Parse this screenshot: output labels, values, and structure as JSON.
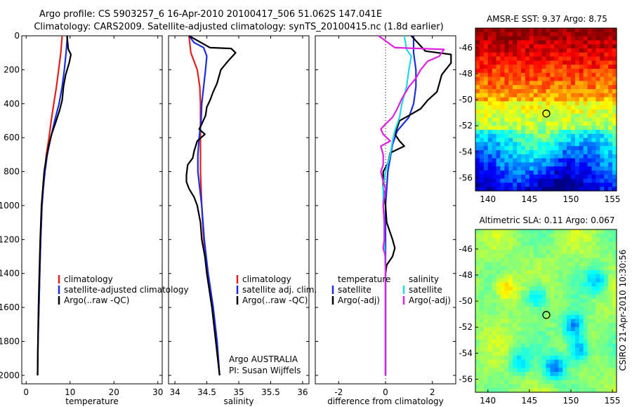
{
  "header": {
    "line1": "Argo profile: CS 5903257_6 16-Apr-2010 20100417_506 51.062S 147.041E",
    "line2": "Climatology: CARS2009. Satellite-adjusted climatology: synTS_20100415.nc (1.8d earlier)"
  },
  "colors": {
    "climatology": "#e0201e",
    "satellite": "#1a2ee0",
    "argo": "#000000",
    "satellite_salinity": "#22d8e8",
    "argo_salinity": "#e020e0"
  },
  "chart_data": [
    {
      "type": "line",
      "name": "temperature-panel",
      "xlabel": "temperature",
      "xlim": [
        -1,
        31
      ],
      "ylim": [
        0,
        2050
      ],
      "y_reversed": true,
      "xticks": [
        "0",
        "10",
        "20",
        "30"
      ],
      "yticks": [
        "0",
        "200",
        "400",
        "600",
        "800",
        "1000",
        "1200",
        "1400",
        "1600",
        "1800",
        "2000"
      ],
      "legend": [
        "climatology",
        "satellite-adjusted climatology",
        "Argo(..raw -QC)"
      ],
      "series": [
        {
          "name": "climatology",
          "color": "climatology",
          "points": [
            [
              8.2,
              0
            ],
            [
              7.9,
              100
            ],
            [
              7.4,
              200
            ],
            [
              6.9,
              300
            ],
            [
              6.3,
              400
            ],
            [
              5.7,
              500
            ],
            [
              5.2,
              600
            ],
            [
              4.6,
              700
            ],
            [
              4.2,
              800
            ],
            [
              3.9,
              900
            ],
            [
              3.6,
              1000
            ],
            [
              3.3,
              1200
            ],
            [
              3.1,
              1400
            ],
            [
              2.9,
              1600
            ],
            [
              2.7,
              1800
            ],
            [
              2.6,
              2000
            ]
          ]
        },
        {
          "name": "satellite-adjusted climatology",
          "color": "satellite",
          "points": [
            [
              9.4,
              0
            ],
            [
              9.1,
              100
            ],
            [
              8.7,
              200
            ],
            [
              8.2,
              300
            ],
            [
              7.5,
              400
            ],
            [
              6.5,
              500
            ],
            [
              5.6,
              600
            ],
            [
              4.8,
              700
            ],
            [
              4.3,
              800
            ],
            [
              3.9,
              900
            ],
            [
              3.6,
              1000
            ],
            [
              3.3,
              1200
            ],
            [
              3.1,
              1400
            ],
            [
              2.9,
              1600
            ],
            [
              2.7,
              1800
            ],
            [
              2.6,
              2000
            ]
          ]
        },
        {
          "name": "Argo(..raw -QC)",
          "color": "argo",
          "points": [
            [
              9.3,
              0
            ],
            [
              9.6,
              80
            ],
            [
              10.2,
              110
            ],
            [
              9.8,
              160
            ],
            [
              9.0,
              230
            ],
            [
              8.5,
              300
            ],
            [
              8.2,
              380
            ],
            [
              7.6,
              440
            ],
            [
              6.6,
              520
            ],
            [
              5.8,
              580
            ],
            [
              5.2,
              640
            ],
            [
              4.6,
              720
            ],
            [
              4.1,
              800
            ],
            [
              3.8,
              900
            ],
            [
              3.5,
              1000
            ],
            [
              3.2,
              1200
            ],
            [
              3.0,
              1400
            ],
            [
              2.8,
              1600
            ],
            [
              2.7,
              1800
            ],
            [
              2.6,
              2000
            ]
          ]
        }
      ]
    },
    {
      "type": "line",
      "name": "salinity-panel",
      "xlabel": "salinity",
      "xlim": [
        33.9,
        36.1
      ],
      "ylim": [
        0,
        2050
      ],
      "y_reversed": true,
      "xticks": [
        "34",
        "34.5",
        "35",
        "35.5",
        "36"
      ],
      "legend": [
        "climatology",
        "satellite adj. clim.",
        "Argo(..raw -QC)"
      ],
      "annotation": [
        "Argo AUSTRALIA",
        "PI: Susan Wijffels"
      ],
      "series": [
        {
          "name": "climatology",
          "color": "climatology",
          "points": [
            [
              34.22,
              0
            ],
            [
              34.25,
              100
            ],
            [
              34.35,
              200
            ],
            [
              34.39,
              300
            ],
            [
              34.4,
              400
            ],
            [
              34.4,
              500
            ],
            [
              34.4,
              600
            ],
            [
              34.4,
              700
            ],
            [
              34.4,
              800
            ],
            [
              34.41,
              900
            ],
            [
              34.42,
              1000
            ],
            [
              34.45,
              1200
            ],
            [
              34.52,
              1400
            ],
            [
              34.6,
              1600
            ],
            [
              34.66,
              1800
            ],
            [
              34.7,
              2000
            ]
          ]
        },
        {
          "name": "satellite adj. clim.",
          "color": "satellite",
          "points": [
            [
              34.22,
              0
            ],
            [
              34.3,
              40
            ],
            [
              34.45,
              70
            ],
            [
              34.5,
              120
            ],
            [
              34.48,
              200
            ],
            [
              34.45,
              300
            ],
            [
              34.42,
              400
            ],
            [
              34.41,
              500
            ],
            [
              34.38,
              600
            ],
            [
              34.36,
              700
            ],
            [
              34.36,
              800
            ],
            [
              34.39,
              900
            ],
            [
              34.42,
              1000
            ],
            [
              34.46,
              1200
            ],
            [
              34.52,
              1400
            ],
            [
              34.6,
              1600
            ],
            [
              34.66,
              1800
            ],
            [
              34.7,
              2000
            ]
          ]
        },
        {
          "name": "Argo(..raw -QC)",
          "color": "argo",
          "points": [
            [
              34.22,
              0
            ],
            [
              34.55,
              70
            ],
            [
              34.88,
              75
            ],
            [
              34.95,
              100
            ],
            [
              34.83,
              150
            ],
            [
              34.72,
              200
            ],
            [
              34.66,
              280
            ],
            [
              34.6,
              330
            ],
            [
              34.55,
              380
            ],
            [
              34.5,
              420
            ],
            [
              34.48,
              470
            ],
            [
              34.42,
              520
            ],
            [
              34.38,
              550
            ],
            [
              34.47,
              580
            ],
            [
              34.35,
              620
            ],
            [
              34.3,
              680
            ],
            [
              34.28,
              720
            ],
            [
              34.2,
              760
            ],
            [
              34.18,
              820
            ],
            [
              34.18,
              860
            ],
            [
              34.22,
              900
            ],
            [
              34.3,
              950
            ],
            [
              34.35,
              1000
            ],
            [
              34.4,
              1100
            ],
            [
              34.42,
              1200
            ],
            [
              34.47,
              1300
            ],
            [
              34.5,
              1400
            ],
            [
              34.58,
              1600
            ],
            [
              34.64,
              1800
            ],
            [
              34.7,
              2000
            ]
          ]
        }
      ]
    },
    {
      "type": "line",
      "name": "difference-panel",
      "xlabel": "difference from climatology",
      "xlim": [
        -3,
        3
      ],
      "ylim": [
        0,
        2050
      ],
      "y_reversed": true,
      "zero_line": true,
      "xticks": [
        "-2",
        "0",
        "2"
      ],
      "legend_columns": [
        {
          "header": "temperature",
          "entries": [
            "satellite",
            "Argo(-adj)"
          ]
        },
        {
          "header": "salinity",
          "entries": [
            "satellite",
            "Argo(-adj)"
          ]
        }
      ],
      "series": [
        {
          "name": "temperature satellite",
          "color": "satellite",
          "points": [
            [
              1.2,
              0
            ],
            [
              1.2,
              100
            ],
            [
              1.3,
              200
            ],
            [
              1.3,
              300
            ],
            [
              1.2,
              400
            ],
            [
              1.0,
              480
            ],
            [
              0.5,
              560
            ],
            [
              0.3,
              640
            ],
            [
              0.2,
              720
            ],
            [
              0.1,
              800
            ],
            [
              0.05,
              900
            ],
            [
              0.0,
              1000
            ],
            [
              0.0,
              1200
            ],
            [
              0.0,
              2000
            ]
          ]
        },
        {
          "name": "temperature Argo(-adj)",
          "color": "argo",
          "points": [
            [
              1.1,
              0
            ],
            [
              1.7,
              90
            ],
            [
              2.8,
              110
            ],
            [
              2.8,
              160
            ],
            [
              2.4,
              230
            ],
            [
              2.3,
              280
            ],
            [
              2.2,
              330
            ],
            [
              1.8,
              380
            ],
            [
              1.5,
              430
            ],
            [
              1.0,
              470
            ],
            [
              0.6,
              500
            ],
            [
              0.5,
              540
            ],
            [
              0.4,
              580
            ],
            [
              0.6,
              620
            ],
            [
              0.8,
              650
            ],
            [
              0.2,
              690
            ],
            [
              0.1,
              750
            ],
            [
              -0.1,
              800
            ],
            [
              -0.1,
              900
            ],
            [
              0.0,
              1000
            ],
            [
              0.05,
              1100
            ],
            [
              0.3,
              1200
            ],
            [
              0.4,
              1250
            ],
            [
              0.3,
              1300
            ],
            [
              0.05,
              1350
            ],
            [
              0.0,
              1400
            ],
            [
              0.0,
              2000
            ]
          ]
        },
        {
          "name": "salinity satellite",
          "color": "satellite_salinity",
          "points": [
            [
              0.8,
              0
            ],
            [
              0.9,
              80
            ],
            [
              1.1,
              120
            ],
            [
              1.0,
              200
            ],
            [
              0.9,
              300
            ],
            [
              0.7,
              400
            ],
            [
              0.6,
              480
            ],
            [
              0.4,
              560
            ],
            [
              0.3,
              620
            ],
            [
              0.2,
              700
            ],
            [
              0.0,
              800
            ],
            [
              -0.1,
              900
            ],
            [
              -0.1,
              1000
            ],
            [
              -0.05,
              1100
            ],
            [
              -0.05,
              1200
            ],
            [
              0.0,
              1400
            ],
            [
              0.0,
              2000
            ]
          ]
        },
        {
          "name": "salinity Argo(-adj)",
          "color": "argo_salinity",
          "points": [
            [
              -0.3,
              0
            ],
            [
              0.4,
              70
            ],
            [
              2.5,
              80
            ],
            [
              2.3,
              120
            ],
            [
              1.8,
              150
            ],
            [
              1.5,
              200
            ],
            [
              1.3,
              250
            ],
            [
              1.0,
              300
            ],
            [
              0.7,
              370
            ],
            [
              0.5,
              430
            ],
            [
              0.3,
              480
            ],
            [
              0.0,
              520
            ],
            [
              -0.2,
              550
            ],
            [
              -0.1,
              580
            ],
            [
              0.2,
              620
            ],
            [
              -0.2,
              650
            ],
            [
              -0.1,
              700
            ],
            [
              -0.1,
              760
            ],
            [
              -0.2,
              800
            ],
            [
              -0.1,
              860
            ],
            [
              0.0,
              900
            ],
            [
              -0.1,
              1000
            ],
            [
              -0.05,
              1100
            ],
            [
              -0.05,
              1200
            ],
            [
              -0.1,
              1250
            ],
            [
              0.0,
              1300
            ],
            [
              0.0,
              2000
            ]
          ]
        }
      ]
    },
    {
      "type": "heatmap",
      "name": "sst-map",
      "title": "AMSR-E SST: 9.37 Argo: 8.75",
      "xlim": [
        138.5,
        155.5
      ],
      "ylim": [
        -57,
        -44.5
      ],
      "xticks": [
        "140",
        "145",
        "150",
        "155"
      ],
      "yticks": [
        "-46",
        "-48",
        "-50",
        "-52",
        "-54",
        "-56"
      ],
      "marker": {
        "lon": 147.041,
        "lat": -51.062
      },
      "field": "warm in the north (red/orange), green band near -51, blue in the south"
    },
    {
      "type": "heatmap",
      "name": "sla-map",
      "title": "Altimetric SLA: 0.11 Argo: 0.067",
      "xlim": [
        138.5,
        155.5
      ],
      "ylim": [
        -57,
        -44.5
      ],
      "xticks": [
        "140",
        "145",
        "150",
        "155"
      ],
      "yticks": [
        "-46",
        "-48",
        "-50",
        "-52",
        "-54",
        "-56"
      ],
      "marker": {
        "lon": 147.041,
        "lat": -51.062
      },
      "field": "mostly green/yellow with blue eddies near 148E-151E, 52S-56S"
    }
  ],
  "footer": {
    "side_label": "CSIRO 21-Apr-2010 10:30:56"
  }
}
